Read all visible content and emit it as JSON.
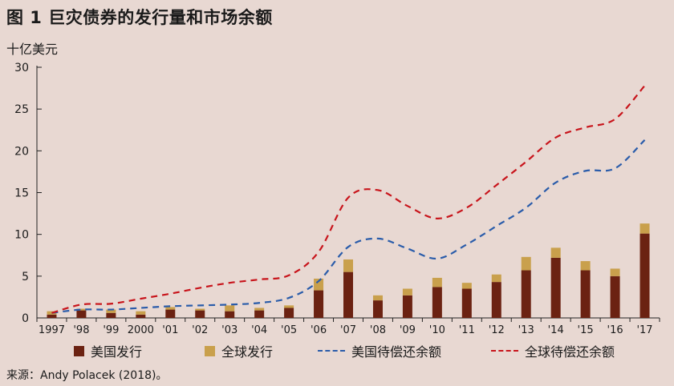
{
  "header": {
    "title": "图 1  巨灾债券的发行量和市场余额",
    "unit": "十亿美元"
  },
  "footer": {
    "source": "来源：Andy Polacek (2018)。"
  },
  "colors": {
    "us_issuance": "#6b2212",
    "global_issuance": "#c9a04c",
    "us_outstanding": "#2a5caa",
    "global_outstanding": "#c8141b",
    "background": "#e8d8d2"
  },
  "chart_data": {
    "type": "bar",
    "title": "图 1  巨灾债券的发行量和市场余额",
    "ylabel": "十亿美元",
    "xlabel": "",
    "ylim": [
      0,
      30
    ],
    "yticks": [
      0,
      5,
      10,
      15,
      20,
      25,
      30
    ],
    "grid": false,
    "legend_position": "bottom",
    "categories": [
      "1997",
      "'98",
      "'99",
      "2000",
      "'01",
      "'02",
      "'03",
      "'04",
      "'05",
      "'06",
      "'07",
      "'08",
      "'09",
      "'10",
      "'11",
      "'12",
      "'13",
      "'14",
      "'15",
      "'16",
      "'17"
    ],
    "series": [
      {
        "name": "美国发行",
        "type": "bar",
        "stack": "issuance",
        "values": [
          0.4,
          0.9,
          0.6,
          0.4,
          1.0,
          0.9,
          0.8,
          0.9,
          1.2,
          3.3,
          5.5,
          2.1,
          2.7,
          3.7,
          3.5,
          4.3,
          5.7,
          7.2,
          5.7,
          5.0,
          10.1
        ]
      },
      {
        "name": "全球发行",
        "type": "bar",
        "stack": "issuance",
        "values": [
          0.4,
          0.2,
          0.4,
          0.4,
          0.3,
          0.2,
          0.7,
          0.3,
          0.3,
          1.4,
          1.5,
          0.6,
          0.8,
          1.1,
          0.7,
          0.9,
          1.6,
          1.2,
          1.1,
          0.9,
          1.2
        ]
      },
      {
        "name": "美国待偿还余额",
        "type": "line",
        "style": "dashed",
        "values": [
          0.6,
          1.0,
          1.0,
          1.2,
          1.4,
          1.5,
          1.6,
          1.8,
          2.4,
          4.4,
          8.5,
          9.5,
          8.3,
          7.1,
          8.8,
          11.0,
          13.2,
          16.2,
          17.6,
          17.9,
          21.3
        ]
      },
      {
        "name": "全球待偿还余额",
        "type": "line",
        "style": "dashed",
        "values": [
          0.6,
          1.6,
          1.7,
          2.3,
          2.9,
          3.6,
          4.2,
          4.6,
          5.1,
          7.9,
          14.4,
          15.3,
          13.4,
          11.9,
          13.2,
          15.9,
          18.7,
          21.6,
          22.8,
          23.8,
          27.8
        ]
      }
    ]
  }
}
